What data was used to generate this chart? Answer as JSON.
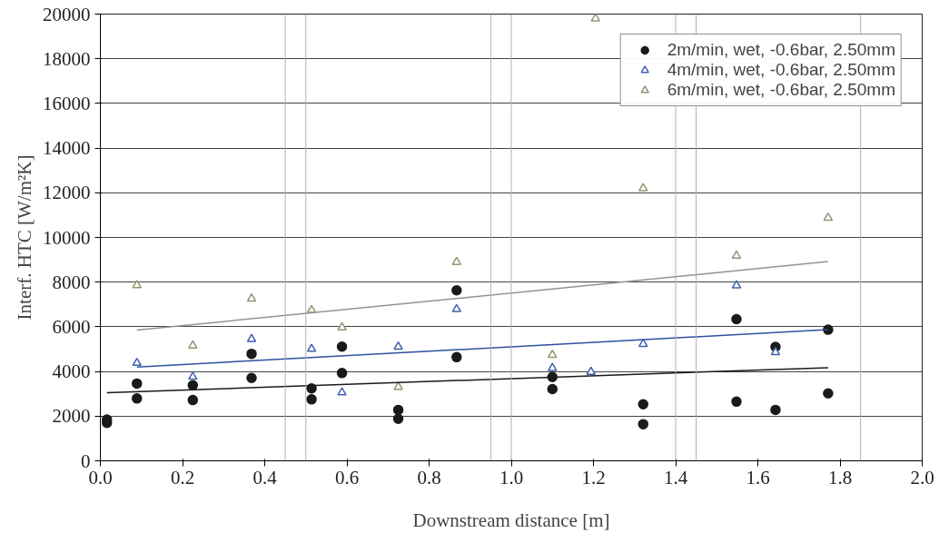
{
  "chart_data": {
    "type": "scatter",
    "xlabel": "Downstream distance [m]",
    "ylabel": "Interf. HTC [W/m²K]",
    "xlim": [
      0,
      2.0
    ],
    "xticks": [
      {
        "value": 0,
        "label": "0.0"
      },
      0.2,
      0.4,
      0.6,
      0.8,
      {
        "value": 1.0,
        "label": "1.0"
      },
      1.2,
      1.4,
      1.6,
      1.8,
      {
        "value": 2.0,
        "label": "2.0"
      }
    ],
    "ylim": [
      0,
      20000
    ],
    "yticks": [
      0,
      2000,
      4000,
      6000,
      8000,
      10000,
      12000,
      14000,
      16000,
      18000,
      20000
    ],
    "grid": "y",
    "legend": "top right",
    "ref_lines": [
      {
        "axis": "x",
        "value": 0.45,
        "color": "#b0b0b0"
      },
      {
        "axis": "x",
        "value": 0.5,
        "color": "#b0b0b0"
      },
      {
        "axis": "x",
        "value": 0.95,
        "color": "#b0b0b0"
      },
      {
        "axis": "x",
        "value": 1.0,
        "color": "#b0b0b0"
      },
      {
        "axis": "x",
        "value": 1.4,
        "color": "#b0b0b0"
      },
      {
        "axis": "x",
        "value": 1.45,
        "color": "#b0b0b0"
      },
      {
        "axis": "x",
        "value": 1.85,
        "color": "#b0b0b0"
      }
    ],
    "series": [
      {
        "name": "2m/min, wet, -0.6bar, 2.50mm",
        "color": "#1a1a1a",
        "marker": "circle",
        "x": [
          0.016,
          0.016,
          0.089,
          0.089,
          0.225,
          0.225,
          0.368,
          0.368,
          0.514,
          0.514,
          0.588,
          0.588,
          0.725,
          0.725,
          0.867,
          0.867,
          1.1,
          1.1,
          1.321,
          1.321,
          1.548,
          1.548,
          1.643,
          1.643,
          1.771,
          1.771
        ],
        "values": [
          1700,
          1850,
          3460,
          2790,
          3380,
          2720,
          4790,
          3710,
          3240,
          2750,
          5110,
          3930,
          2280,
          1880,
          7630,
          4640,
          3750,
          3210,
          2530,
          1640,
          6340,
          2650,
          2280,
          5100,
          5870,
          3020
        ]
      },
      {
        "name": "4m/min, wet, -0.6bar, 2.50mm",
        "color": "#4060b0",
        "marker": "triangle",
        "x": [
          0.089,
          0.225,
          0.368,
          0.514,
          0.588,
          0.725,
          0.867,
          1.1,
          1.194,
          1.321,
          1.548,
          1.643
        ],
        "values": [
          4380,
          3760,
          5450,
          5010,
          3060,
          5110,
          6790,
          4150,
          3980,
          5230,
          7850,
          4860
        ]
      },
      {
        "name": "6m/min, wet, -0.6bar, 2.50mm",
        "color": "#8a9a70",
        "marker": "triangle",
        "x": [
          0.089,
          0.225,
          0.368,
          0.514,
          0.588,
          0.725,
          0.867,
          1.1,
          1.205,
          1.321,
          1.548,
          1.771
        ],
        "values": [
          7860,
          5160,
          7260,
          6750,
          5970,
          3310,
          8900,
          4740,
          19800,
          12200,
          9180,
          10880
        ]
      },
      {
        "type": "line",
        "color": "#1a1a1a",
        "x": [
          0.016,
          1.771
        ],
        "values": [
          3050,
          4170
        ]
      },
      {
        "type": "line",
        "color": "#3050a0",
        "x": [
          0.089,
          1.771
        ],
        "values": [
          4200,
          5870
        ]
      },
      {
        "type": "line",
        "color": "#8a9a8a",
        "x": [
          0.089,
          1.771
        ],
        "values": [
          5850,
          8920
        ]
      }
    ]
  }
}
